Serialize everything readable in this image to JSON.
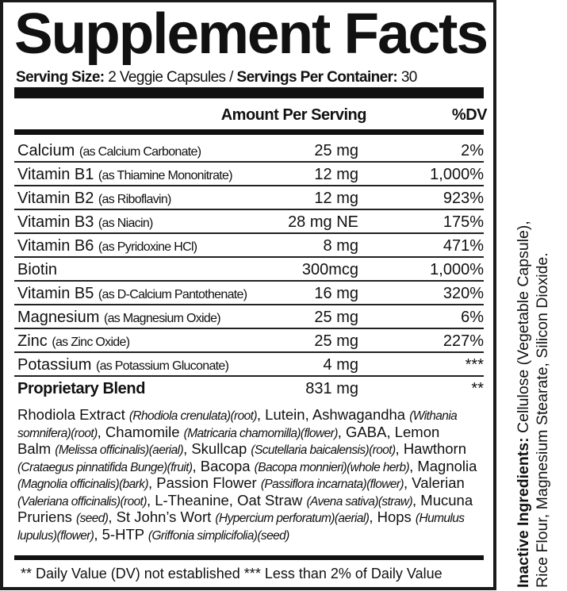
{
  "title": "Supplement Facts",
  "serving": {
    "size_label": "Serving Size:",
    "size_value": " 2 Veggie Capsules / ",
    "per_container_label": "Servings Per Container:",
    "per_container_value": " 30"
  },
  "header": {
    "amount": "Amount Per Serving",
    "dv": "%DV"
  },
  "rows": [
    {
      "name": "Calcium",
      "source": "(as Calcium Carbonate)",
      "amount": "25 mg",
      "dv": "2%"
    },
    {
      "name": "Vitamin B1",
      "source": "(as Thiamine Mononitrate)",
      "amount": "12 mg",
      "dv": "1,000%"
    },
    {
      "name": "Vitamin B2",
      "source": "(as Riboflavin)",
      "amount": "12 mg",
      "dv": "923%"
    },
    {
      "name": "Vitamin B3",
      "source": "(as Niacin)",
      "amount": "28 mg NE",
      "dv": "175%"
    },
    {
      "name": "Vitamin B6",
      "source": "(as Pyridoxine HCl)",
      "amount": "8 mg",
      "dv": "471%"
    },
    {
      "name": "Biotin",
      "source": "",
      "amount": "300mcg",
      "dv": "1,000%"
    },
    {
      "name": "Vitamin B5",
      "source": "(as D-Calcium Pantothenate)",
      "amount": "16 mg",
      "dv": "320%"
    },
    {
      "name": "Magnesium",
      "source": "(as Magnesium Oxide)",
      "amount": "25 mg",
      "dv": "6%"
    },
    {
      "name": "Zinc",
      "source": "(as Zinc Oxide)",
      "amount": "25 mg",
      "dv": "227%"
    },
    {
      "name": "Potassium",
      "source": "(as Potassium Gluconate)",
      "amount": "4 mg",
      "dv": "***"
    },
    {
      "name": "Proprietary Blend",
      "source": "",
      "amount": "831 mg",
      "dv": "**",
      "bold": true
    }
  ],
  "blend_lines": [
    [
      {
        "t": "Rhodiola Extract "
      },
      {
        "t": "(Rhodiola crenulata)(root)",
        "i": true
      },
      {
        "t": ", Lutein,  Ashwagandha "
      },
      {
        "t": "(Withania",
        "i": true
      }
    ],
    [
      {
        "t": "somnifera)(root)",
        "i": true
      },
      {
        "t": ", Chamomile "
      },
      {
        "t": "(Matricaria chamomilla)(flower)",
        "i": true
      },
      {
        "t": ", GABA, Lemon"
      }
    ],
    [
      {
        "t": "Balm "
      },
      {
        "t": "(Melissa officinalis)(aerial)",
        "i": true
      },
      {
        "t": ", Skullcap "
      },
      {
        "t": "(Scutellaria baicalensis)(root)",
        "i": true
      },
      {
        "t": ", Hawthorn"
      }
    ],
    [
      {
        "t": "(Crataegus pinnatifida Bunge)(fruit)",
        "i": true
      },
      {
        "t": ", Bacopa "
      },
      {
        "t": "(Bacopa monnieri)(whole herb)",
        "i": true
      },
      {
        "t": ", Magnolia"
      }
    ],
    [
      {
        "t": "(Magnolia officinalis)(bark)",
        "i": true
      },
      {
        "t": ", Passion Flower "
      },
      {
        "t": "(Passiflora incarnata)(flower)",
        "i": true
      },
      {
        "t": ", Valerian"
      }
    ],
    [
      {
        "t": "(Valeriana officinalis)(root)",
        "i": true
      },
      {
        "t": ", L-Theanine, Oat Straw "
      },
      {
        "t": "(Avena sativa)(straw)",
        "i": true
      },
      {
        "t": ", Mucuna"
      }
    ],
    [
      {
        "t": "Pruriens "
      },
      {
        "t": "(seed)",
        "i": true
      },
      {
        "t": ", St John’s Wort "
      },
      {
        "t": "(Hypercium perforatum)(aerial)",
        "i": true
      },
      {
        "t": ", Hops "
      },
      {
        "t": "(Humulus",
        "i": true
      }
    ],
    [
      {
        "t": "lupulus)(flower)",
        "i": true
      },
      {
        "t": ", 5-HTP "
      },
      {
        "t": "(Griffonia simplicifolia)(seed)",
        "i": true
      }
    ]
  ],
  "footnote": "** Daily Value (DV) not established  *** Less than 2% of Daily Value",
  "inactive": {
    "label": "Inactive Ingredients:",
    "line1": " Cellulose (Vegetable Capsule),",
    "line2": "Rice Flour, Magnesium Stearate, Silicon Dioxide."
  }
}
